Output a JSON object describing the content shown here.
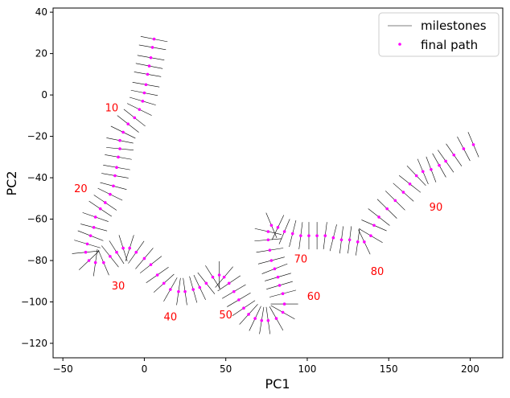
{
  "chart_data": {
    "type": "scatter",
    "xlabel": "PC1",
    "ylabel": "PC2",
    "xlim": [
      -56,
      220
    ],
    "ylim": [
      -127,
      42
    ],
    "x_ticks": [
      -50,
      0,
      50,
      100,
      150,
      200
    ],
    "y_ticks": [
      40,
      20,
      0,
      -20,
      -40,
      -60,
      -80,
      -100,
      -120
    ],
    "x_tick_labels": [
      "−50",
      "0",
      "50",
      "100",
      "150",
      "200"
    ],
    "y_tick_labels": [
      "40",
      "20",
      "0",
      "−20",
      "−40",
      "−60",
      "−80",
      "−100",
      "−120"
    ],
    "grid": false,
    "legend": {
      "position": "top-right",
      "entries": [
        {
          "label": "milestones",
          "marker": "line",
          "color": "#000000"
        },
        {
          "label": "final path",
          "marker": "dot",
          "color": "#ff00ff"
        }
      ]
    },
    "series": [
      {
        "name": "final path",
        "color": "#ff00ff",
        "points": [
          [
            6,
            27
          ],
          [
            5,
            23
          ],
          [
            4,
            18
          ],
          [
            3,
            14
          ],
          [
            2,
            10
          ],
          [
            1,
            5
          ],
          [
            0,
            1
          ],
          [
            -1,
            -3
          ],
          [
            -3,
            -7
          ],
          [
            -6,
            -11
          ],
          [
            -10,
            -14
          ],
          [
            -13,
            -18
          ],
          [
            -15,
            -22
          ],
          [
            -15,
            -26
          ],
          [
            -16,
            -30
          ],
          [
            -17,
            -35
          ],
          [
            -18,
            -39
          ],
          [
            -19,
            -44
          ],
          [
            -21,
            -48
          ],
          [
            -24,
            -52
          ],
          [
            -27,
            -55
          ],
          [
            -30,
            -59
          ],
          [
            -31,
            -64
          ],
          [
            -33,
            -68
          ],
          [
            -35,
            -72
          ],
          [
            -36,
            -76
          ],
          [
            -34,
            -80
          ],
          [
            -30,
            -81
          ],
          [
            -25,
            -81
          ],
          [
            -21,
            -78
          ],
          [
            -17,
            -76
          ],
          [
            -13,
            -74
          ],
          [
            -9,
            -74
          ],
          [
            -5,
            -76
          ],
          [
            0,
            -79
          ],
          [
            4,
            -82
          ],
          [
            8,
            -87
          ],
          [
            12,
            -91
          ],
          [
            16,
            -94
          ],
          [
            21,
            -95
          ],
          [
            25,
            -95
          ],
          [
            30,
            -94
          ],
          [
            34,
            -93
          ],
          [
            38,
            -91
          ],
          [
            42,
            -88
          ],
          [
            46,
            -87
          ],
          [
            49,
            -88
          ],
          [
            52,
            -91
          ],
          [
            55,
            -95
          ],
          [
            58,
            -99
          ],
          [
            61,
            -103
          ],
          [
            64,
            -106
          ],
          [
            68,
            -108
          ],
          [
            72,
            -109
          ],
          [
            76,
            -109
          ],
          [
            81,
            -108
          ],
          [
            85,
            -105
          ],
          [
            86,
            -101
          ],
          [
            85,
            -96
          ],
          [
            83,
            -92
          ],
          [
            82,
            -88
          ],
          [
            80,
            -84
          ],
          [
            78,
            -80
          ],
          [
            77,
            -75
          ],
          [
            76,
            -70
          ],
          [
            76,
            -66
          ],
          [
            78,
            -63
          ],
          [
            82,
            -64
          ],
          [
            86,
            -66
          ],
          [
            91,
            -67
          ],
          [
            96,
            -68
          ],
          [
            101,
            -68
          ],
          [
            106,
            -68
          ],
          [
            111,
            -68
          ],
          [
            116,
            -69
          ],
          [
            121,
            -70
          ],
          [
            126,
            -70
          ],
          [
            131,
            -71
          ],
          [
            135,
            -71
          ],
          [
            139,
            -68
          ],
          [
            141,
            -63
          ],
          [
            144,
            -59
          ],
          [
            149,
            -55
          ],
          [
            154,
            -51
          ],
          [
            159,
            -47
          ],
          [
            163,
            -43
          ],
          [
            167,
            -39
          ],
          [
            171,
            -37
          ],
          [
            176,
            -36
          ],
          [
            181,
            -34
          ],
          [
            185,
            -32
          ],
          [
            190,
            -29
          ],
          [
            196,
            -26
          ],
          [
            202,
            -24
          ]
        ]
      }
    ],
    "milestones": {
      "name": "milestones",
      "color": "#000000",
      "points": [
        [
          6,
          27
        ],
        [
          5,
          23
        ],
        [
          4,
          18
        ],
        [
          3,
          14
        ],
        [
          2,
          10
        ],
        [
          1,
          5
        ],
        [
          0,
          1
        ],
        [
          -1,
          -3
        ],
        [
          -3,
          -7
        ],
        [
          -6,
          -11
        ],
        [
          -10,
          -14
        ],
        [
          -13,
          -18
        ],
        [
          -15,
          -22
        ],
        [
          -15,
          -26
        ],
        [
          -16,
          -30
        ],
        [
          -17,
          -35
        ],
        [
          -18,
          -39
        ],
        [
          -19,
          -44
        ],
        [
          -21,
          -48
        ],
        [
          -24,
          -52
        ],
        [
          -27,
          -55
        ],
        [
          -30,
          -59
        ],
        [
          -31,
          -64
        ],
        [
          -33,
          -68
        ],
        [
          -35,
          -72
        ],
        [
          -36,
          -76
        ],
        [
          -34,
          -80
        ],
        [
          -30,
          -81
        ],
        [
          -25,
          -81
        ],
        [
          -21,
          -78
        ],
        [
          -17,
          -76
        ],
        [
          -13,
          -74
        ],
        [
          -9,
          -74
        ],
        [
          -5,
          -76
        ],
        [
          0,
          -79
        ],
        [
          4,
          -82
        ],
        [
          8,
          -87
        ],
        [
          12,
          -91
        ],
        [
          16,
          -94
        ],
        [
          21,
          -95
        ],
        [
          25,
          -95
        ],
        [
          30,
          -94
        ],
        [
          34,
          -93
        ],
        [
          38,
          -91
        ],
        [
          42,
          -88
        ],
        [
          46,
          -87
        ],
        [
          49,
          -88
        ],
        [
          52,
          -91
        ],
        [
          55,
          -95
        ],
        [
          58,
          -99
        ],
        [
          61,
          -103
        ],
        [
          64,
          -106
        ],
        [
          68,
          -108
        ],
        [
          72,
          -109
        ],
        [
          76,
          -109
        ],
        [
          81,
          -108
        ],
        [
          85,
          -105
        ],
        [
          86,
          -101
        ],
        [
          85,
          -96
        ],
        [
          83,
          -92
        ],
        [
          82,
          -88
        ],
        [
          80,
          -84
        ],
        [
          78,
          -80
        ],
        [
          77,
          -75
        ],
        [
          76,
          -70
        ],
        [
          76,
          -66
        ],
        [
          78,
          -63
        ],
        [
          82,
          -64
        ],
        [
          86,
          -66
        ],
        [
          91,
          -67
        ],
        [
          96,
          -68
        ],
        [
          101,
          -68
        ],
        [
          106,
          -68
        ],
        [
          111,
          -68
        ],
        [
          116,
          -69
        ],
        [
          121,
          -70
        ],
        [
          126,
          -70
        ],
        [
          131,
          -71
        ],
        [
          135,
          -71
        ],
        [
          139,
          -68
        ],
        [
          141,
          -63
        ],
        [
          144,
          -59
        ],
        [
          149,
          -55
        ],
        [
          154,
          -51
        ],
        [
          159,
          -47
        ],
        [
          163,
          -43
        ],
        [
          167,
          -39
        ],
        [
          171,
          -37
        ],
        [
          176,
          -36
        ],
        [
          181,
          -34
        ],
        [
          185,
          -32
        ],
        [
          190,
          -29
        ],
        [
          196,
          -26
        ],
        [
          202,
          -24
        ]
      ]
    },
    "annotations": [
      {
        "text": "10",
        "x": -20,
        "y": -6,
        "color": "#ff0000"
      },
      {
        "text": "20",
        "x": -39,
        "y": -45,
        "color": "#ff0000"
      },
      {
        "text": "30",
        "x": -16,
        "y": -92,
        "color": "#ff0000"
      },
      {
        "text": "40",
        "x": 16,
        "y": -107,
        "color": "#ff0000"
      },
      {
        "text": "50",
        "x": 50,
        "y": -106,
        "color": "#ff0000"
      },
      {
        "text": "60",
        "x": 104,
        "y": -97,
        "color": "#ff0000"
      },
      {
        "text": "70",
        "x": 96,
        "y": -79,
        "color": "#ff0000"
      },
      {
        "text": "80",
        "x": 143,
        "y": -85,
        "color": "#ff0000"
      },
      {
        "text": "90",
        "x": 179,
        "y": -54,
        "color": "#ff0000"
      }
    ]
  }
}
